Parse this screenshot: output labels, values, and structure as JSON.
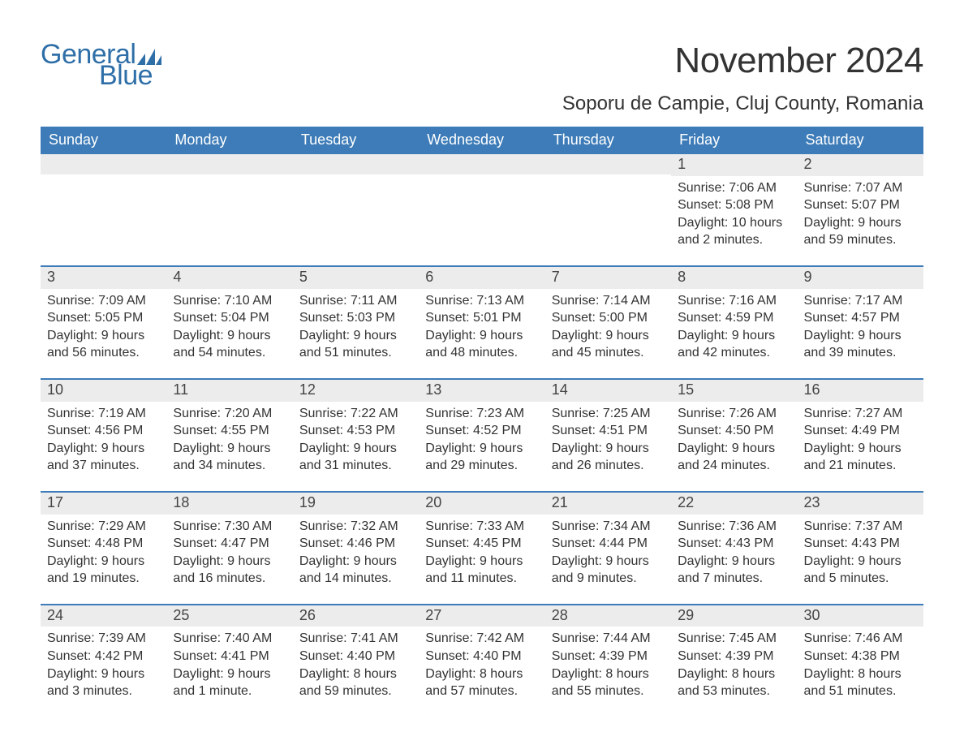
{
  "brand": {
    "word1": "General",
    "word2": "Blue",
    "logo_fill": "#2f6fa8",
    "text_color": "#2f6fa8"
  },
  "title": "November 2024",
  "location": "Soporu de Campie, Cluj County, Romania",
  "colors": {
    "header_bg": "#3d7cb8",
    "header_text": "#ffffff",
    "daynum_bg": "#ececec",
    "border": "#3d7cb8",
    "body_text": "#333333",
    "page_bg": "#ffffff"
  },
  "fonts": {
    "title_size_pt": 33,
    "location_size_pt": 18,
    "header_size_pt": 14,
    "daynum_size_pt": 14,
    "body_size_pt": 12,
    "logo_size_pt": 26
  },
  "day_headers": [
    "Sunday",
    "Monday",
    "Tuesday",
    "Wednesday",
    "Thursday",
    "Friday",
    "Saturday"
  ],
  "weeks": [
    [
      null,
      null,
      null,
      null,
      null,
      {
        "n": "1",
        "sunrise": "Sunrise: 7:06 AM",
        "sunset": "Sunset: 5:08 PM",
        "daylight": "Daylight: 10 hours and 2 minutes."
      },
      {
        "n": "2",
        "sunrise": "Sunrise: 7:07 AM",
        "sunset": "Sunset: 5:07 PM",
        "daylight": "Daylight: 9 hours and 59 minutes."
      }
    ],
    [
      {
        "n": "3",
        "sunrise": "Sunrise: 7:09 AM",
        "sunset": "Sunset: 5:05 PM",
        "daylight": "Daylight: 9 hours and 56 minutes."
      },
      {
        "n": "4",
        "sunrise": "Sunrise: 7:10 AM",
        "sunset": "Sunset: 5:04 PM",
        "daylight": "Daylight: 9 hours and 54 minutes."
      },
      {
        "n": "5",
        "sunrise": "Sunrise: 7:11 AM",
        "sunset": "Sunset: 5:03 PM",
        "daylight": "Daylight: 9 hours and 51 minutes."
      },
      {
        "n": "6",
        "sunrise": "Sunrise: 7:13 AM",
        "sunset": "Sunset: 5:01 PM",
        "daylight": "Daylight: 9 hours and 48 minutes."
      },
      {
        "n": "7",
        "sunrise": "Sunrise: 7:14 AM",
        "sunset": "Sunset: 5:00 PM",
        "daylight": "Daylight: 9 hours and 45 minutes."
      },
      {
        "n": "8",
        "sunrise": "Sunrise: 7:16 AM",
        "sunset": "Sunset: 4:59 PM",
        "daylight": "Daylight: 9 hours and 42 minutes."
      },
      {
        "n": "9",
        "sunrise": "Sunrise: 7:17 AM",
        "sunset": "Sunset: 4:57 PM",
        "daylight": "Daylight: 9 hours and 39 minutes."
      }
    ],
    [
      {
        "n": "10",
        "sunrise": "Sunrise: 7:19 AM",
        "sunset": "Sunset: 4:56 PM",
        "daylight": "Daylight: 9 hours and 37 minutes."
      },
      {
        "n": "11",
        "sunrise": "Sunrise: 7:20 AM",
        "sunset": "Sunset: 4:55 PM",
        "daylight": "Daylight: 9 hours and 34 minutes."
      },
      {
        "n": "12",
        "sunrise": "Sunrise: 7:22 AM",
        "sunset": "Sunset: 4:53 PM",
        "daylight": "Daylight: 9 hours and 31 minutes."
      },
      {
        "n": "13",
        "sunrise": "Sunrise: 7:23 AM",
        "sunset": "Sunset: 4:52 PM",
        "daylight": "Daylight: 9 hours and 29 minutes."
      },
      {
        "n": "14",
        "sunrise": "Sunrise: 7:25 AM",
        "sunset": "Sunset: 4:51 PM",
        "daylight": "Daylight: 9 hours and 26 minutes."
      },
      {
        "n": "15",
        "sunrise": "Sunrise: 7:26 AM",
        "sunset": "Sunset: 4:50 PM",
        "daylight": "Daylight: 9 hours and 24 minutes."
      },
      {
        "n": "16",
        "sunrise": "Sunrise: 7:27 AM",
        "sunset": "Sunset: 4:49 PM",
        "daylight": "Daylight: 9 hours and 21 minutes."
      }
    ],
    [
      {
        "n": "17",
        "sunrise": "Sunrise: 7:29 AM",
        "sunset": "Sunset: 4:48 PM",
        "daylight": "Daylight: 9 hours and 19 minutes."
      },
      {
        "n": "18",
        "sunrise": "Sunrise: 7:30 AM",
        "sunset": "Sunset: 4:47 PM",
        "daylight": "Daylight: 9 hours and 16 minutes."
      },
      {
        "n": "19",
        "sunrise": "Sunrise: 7:32 AM",
        "sunset": "Sunset: 4:46 PM",
        "daylight": "Daylight: 9 hours and 14 minutes."
      },
      {
        "n": "20",
        "sunrise": "Sunrise: 7:33 AM",
        "sunset": "Sunset: 4:45 PM",
        "daylight": "Daylight: 9 hours and 11 minutes."
      },
      {
        "n": "21",
        "sunrise": "Sunrise: 7:34 AM",
        "sunset": "Sunset: 4:44 PM",
        "daylight": "Daylight: 9 hours and 9 minutes."
      },
      {
        "n": "22",
        "sunrise": "Sunrise: 7:36 AM",
        "sunset": "Sunset: 4:43 PM",
        "daylight": "Daylight: 9 hours and 7 minutes."
      },
      {
        "n": "23",
        "sunrise": "Sunrise: 7:37 AM",
        "sunset": "Sunset: 4:43 PM",
        "daylight": "Daylight: 9 hours and 5 minutes."
      }
    ],
    [
      {
        "n": "24",
        "sunrise": "Sunrise: 7:39 AM",
        "sunset": "Sunset: 4:42 PM",
        "daylight": "Daylight: 9 hours and 3 minutes."
      },
      {
        "n": "25",
        "sunrise": "Sunrise: 7:40 AM",
        "sunset": "Sunset: 4:41 PM",
        "daylight": "Daylight: 9 hours and 1 minute."
      },
      {
        "n": "26",
        "sunrise": "Sunrise: 7:41 AM",
        "sunset": "Sunset: 4:40 PM",
        "daylight": "Daylight: 8 hours and 59 minutes."
      },
      {
        "n": "27",
        "sunrise": "Sunrise: 7:42 AM",
        "sunset": "Sunset: 4:40 PM",
        "daylight": "Daylight: 8 hours and 57 minutes."
      },
      {
        "n": "28",
        "sunrise": "Sunrise: 7:44 AM",
        "sunset": "Sunset: 4:39 PM",
        "daylight": "Daylight: 8 hours and 55 minutes."
      },
      {
        "n": "29",
        "sunrise": "Sunrise: 7:45 AM",
        "sunset": "Sunset: 4:39 PM",
        "daylight": "Daylight: 8 hours and 53 minutes."
      },
      {
        "n": "30",
        "sunrise": "Sunrise: 7:46 AM",
        "sunset": "Sunset: 4:38 PM",
        "daylight": "Daylight: 8 hours and 51 minutes."
      }
    ]
  ]
}
